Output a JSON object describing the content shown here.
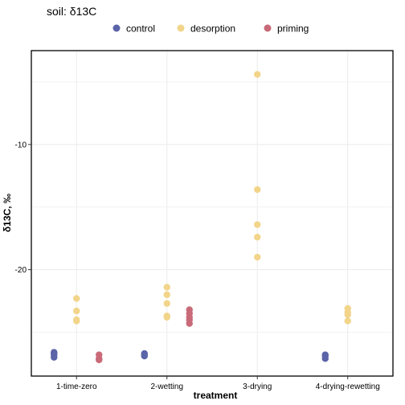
{
  "chart_data": {
    "type": "scatter",
    "title": "soil: δ13C",
    "xlabel": "treatment",
    "ylabel": "δ13C, ‰",
    "categories": [
      "1-time-zero",
      "2-wetting",
      "3-drying",
      "4-drying-rewetting"
    ],
    "ylim": [
      -28.5,
      -2.5
    ],
    "yticks": [
      -10,
      -20
    ],
    "ytick_labels": [
      "-10",
      "-20"
    ],
    "grid": true,
    "legend_position": "top",
    "series": [
      {
        "name": "control",
        "color": "#5b64a8",
        "points": [
          {
            "category": "1-time-zero",
            "y": -26.6
          },
          {
            "category": "1-time-zero",
            "y": -26.7
          },
          {
            "category": "1-time-zero",
            "y": -26.8
          },
          {
            "category": "1-time-zero",
            "y": -27.0
          },
          {
            "category": "2-wetting",
            "y": -26.7
          },
          {
            "category": "2-wetting",
            "y": -26.8
          },
          {
            "category": "2-wetting",
            "y": -26.9
          },
          {
            "category": "4-drying-rewetting",
            "y": -26.8
          },
          {
            "category": "4-drying-rewetting",
            "y": -26.9
          },
          {
            "category": "4-drying-rewetting",
            "y": -27.1
          }
        ]
      },
      {
        "name": "desorption",
        "color": "#f2d58a",
        "points": [
          {
            "category": "1-time-zero",
            "y": -22.3
          },
          {
            "category": "1-time-zero",
            "y": -23.3
          },
          {
            "category": "1-time-zero",
            "y": -24.0
          },
          {
            "category": "1-time-zero",
            "y": -24.1
          },
          {
            "category": "2-wetting",
            "y": -21.4
          },
          {
            "category": "2-wetting",
            "y": -22.0
          },
          {
            "category": "2-wetting",
            "y": -22.7
          },
          {
            "category": "2-wetting",
            "y": -23.7
          },
          {
            "category": "2-wetting",
            "y": -23.8
          },
          {
            "category": "3-drying",
            "y": -4.4
          },
          {
            "category": "3-drying",
            "y": -13.6
          },
          {
            "category": "3-drying",
            "y": -16.4
          },
          {
            "category": "3-drying",
            "y": -17.4
          },
          {
            "category": "3-drying",
            "y": -19.0
          },
          {
            "category": "4-drying-rewetting",
            "y": -23.1
          },
          {
            "category": "4-drying-rewetting",
            "y": -23.4
          },
          {
            "category": "4-drying-rewetting",
            "y": -23.6
          },
          {
            "category": "4-drying-rewetting",
            "y": -24.1
          }
        ]
      },
      {
        "name": "priming",
        "color": "#c96a78",
        "points": [
          {
            "category": "1-time-zero",
            "y": -26.8
          },
          {
            "category": "1-time-zero",
            "y": -27.1
          },
          {
            "category": "1-time-zero",
            "y": -27.2
          },
          {
            "category": "2-wetting",
            "y": -23.2
          },
          {
            "category": "2-wetting",
            "y": -23.5
          },
          {
            "category": "2-wetting",
            "y": -23.8
          },
          {
            "category": "2-wetting",
            "y": -24.0
          },
          {
            "category": "2-wetting",
            "y": -24.3
          }
        ]
      }
    ]
  }
}
